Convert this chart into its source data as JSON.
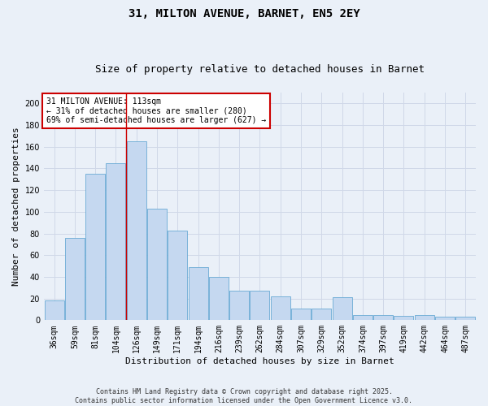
{
  "title": "31, MILTON AVENUE, BARNET, EN5 2EY",
  "subtitle": "Size of property relative to detached houses in Barnet",
  "xlabel": "Distribution of detached houses by size in Barnet",
  "ylabel": "Number of detached properties",
  "categories": [
    "36sqm",
    "59sqm",
    "81sqm",
    "104sqm",
    "126sqm",
    "149sqm",
    "171sqm",
    "194sqm",
    "216sqm",
    "239sqm",
    "262sqm",
    "284sqm",
    "307sqm",
    "329sqm",
    "352sqm",
    "374sqm",
    "397sqm",
    "419sqm",
    "442sqm",
    "464sqm",
    "487sqm"
  ],
  "values": [
    18,
    76,
    135,
    145,
    165,
    103,
    83,
    49,
    40,
    27,
    27,
    22,
    11,
    11,
    21,
    5,
    5,
    4,
    5,
    3,
    3
  ],
  "bar_color": "#c5d8f0",
  "bar_edge_color": "#6aaad4",
  "red_line_x": 3.5,
  "annotation_line1": "31 MILTON AVENUE: 113sqm",
  "annotation_line2": "← 31% of detached houses are smaller (280)",
  "annotation_line3": "69% of semi-detached houses are larger (627) →",
  "annotation_box_color": "#ffffff",
  "annotation_box_edge": "#cc0000",
  "red_line_color": "#cc0000",
  "grid_color": "#d0d8e8",
  "background_color": "#eaf0f8",
  "fig_background": "#eaf0f8",
  "ylim": [
    0,
    210
  ],
  "yticks": [
    0,
    20,
    40,
    60,
    80,
    100,
    120,
    140,
    160,
    180,
    200
  ],
  "footer_line1": "Contains HM Land Registry data © Crown copyright and database right 2025.",
  "footer_line2": "Contains public sector information licensed under the Open Government Licence v3.0.",
  "title_fontsize": 10,
  "subtitle_fontsize": 9,
  "tick_fontsize": 7,
  "ylabel_fontsize": 8,
  "xlabel_fontsize": 8,
  "annotation_fontsize": 7,
  "footer_fontsize": 6
}
